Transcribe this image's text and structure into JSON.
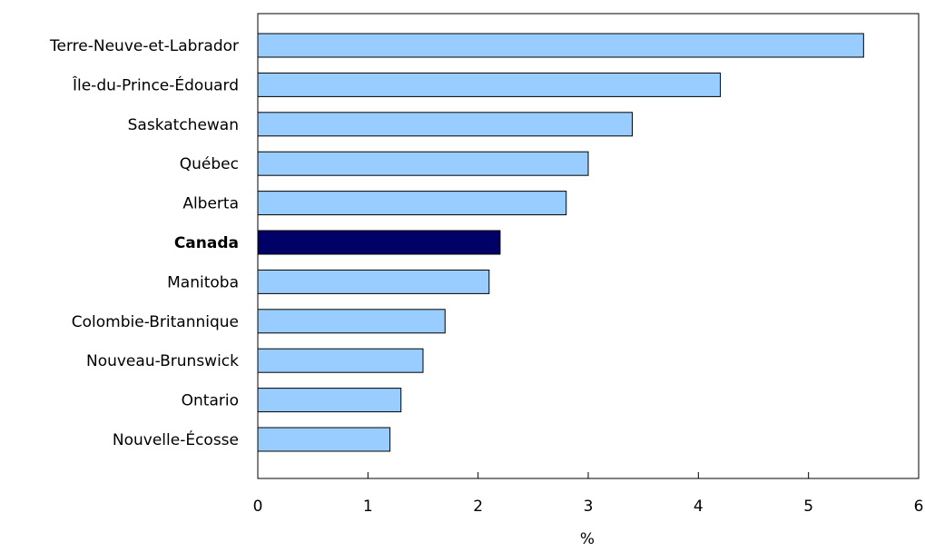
{
  "chart_data": {
    "type": "bar",
    "orientation": "horizontal",
    "categories": [
      "Terre-Neuve-et-Labrador",
      "Île-du-Prince-Édouard",
      "Saskatchewan",
      "Québec",
      "Alberta",
      "Canada",
      "Manitoba",
      "Colombie-Britannique",
      "Nouveau-Brunswick",
      "Ontario",
      "Nouvelle-Écosse"
    ],
    "values": [
      5.5,
      4.2,
      3.4,
      3.0,
      2.8,
      2.2,
      2.1,
      1.7,
      1.5,
      1.3,
      1.2
    ],
    "highlight_category": "Canada",
    "xlabel": "%",
    "ylabel": "",
    "title": "",
    "xlim": [
      0,
      6
    ],
    "xticks": [
      "0",
      "1",
      "2",
      "3",
      "4",
      "5",
      "6"
    ],
    "grid": false,
    "colors": {
      "bar": "#99ccff",
      "highlight_bar": "#000066",
      "bar_outline": "#000000",
      "axis": "#000000",
      "text": "#000000"
    }
  }
}
